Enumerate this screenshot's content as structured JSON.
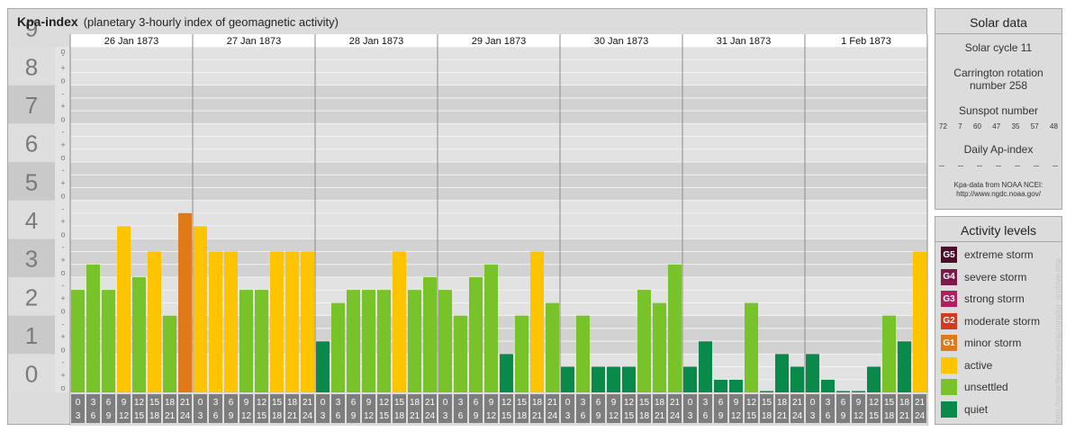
{
  "title": {
    "main": "Kpa-index",
    "subtitle": "(planetary 3-hourly index of geomagnetic activity)"
  },
  "solar": {
    "title": "Solar data",
    "cycle": "Solar cycle 11",
    "carrington_line1": "Carrington rotation",
    "carrington_line2": "number 258",
    "sunspot_label": "Sunspot number",
    "sunspots": [
      "72",
      "7",
      "60",
      "47",
      "35",
      "57",
      "48"
    ],
    "ap_label": "Daily Ap-index",
    "ap_values": [
      "--",
      "--",
      "--",
      "--",
      "--",
      "--",
      "--"
    ],
    "source_line1": "Kpa-data from NOAA NCEI:",
    "source_line2": "http://www.ngdc.noaa.gov/"
  },
  "legend": {
    "title": "Activity levels",
    "items": [
      {
        "code": "G5",
        "label": "extreme storm",
        "color": "#4a0d2a"
      },
      {
        "code": "G4",
        "label": "severe storm",
        "color": "#7a1b4b"
      },
      {
        "code": "G3",
        "label": "strong storm",
        "color": "#b0205f"
      },
      {
        "code": "G2",
        "label": "moderate storm",
        "color": "#d33a1f"
      },
      {
        "code": "G1",
        "label": "minor storm",
        "color": "#e07a18"
      },
      {
        "code": "",
        "label": "active",
        "color": "#ffc400"
      },
      {
        "code": "",
        "label": "unsettled",
        "color": "#78c22a"
      },
      {
        "code": "",
        "label": "quiet",
        "color": "#0a8a4a"
      }
    ]
  },
  "watermark": "http://www.tleyesse.ew/aurora/kp_archive.php",
  "chart_data": {
    "type": "bar",
    "title": "Kpa-index",
    "subtitle": "(planetary 3-hourly index of geomagnetic activity)",
    "ylim": [
      0,
      9
    ],
    "y_ticks": [
      "0",
      "1",
      "2",
      "3",
      "4",
      "5",
      "6",
      "7",
      "8",
      "9"
    ],
    "y_subticks": [
      "o",
      "+",
      "-"
    ],
    "days": [
      "26 Jan 1873",
      "27 Jan 1873",
      "28 Jan 1873",
      "29 Jan 1873",
      "30 Jan 1873",
      "31 Jan 1873",
      "1 Feb 1873"
    ],
    "interval_top": [
      "0",
      "3",
      "6",
      "9",
      "12",
      "15",
      "18",
      "21"
    ],
    "interval_bottom": [
      "3",
      "6",
      "9",
      "12",
      "15",
      "18",
      "21",
      "24"
    ],
    "colors": {
      "quiet": "#0a8a4a",
      "unsettled": "#78c22a",
      "active": "#ffc400",
      "minor": "#e07a18"
    },
    "values": [
      [
        2.67,
        3.33,
        2.67,
        4.33,
        3.0,
        3.67,
        2.0,
        4.67
      ],
      [
        4.33,
        3.67,
        3.67,
        2.67,
        2.67,
        3.67,
        3.67,
        3.67
      ],
      [
        1.33,
        2.33,
        2.67,
        2.67,
        2.67,
        3.67,
        2.67,
        3.0
      ],
      [
        2.67,
        2.0,
        3.0,
        3.33,
        1.0,
        2.0,
        3.67,
        2.33
      ],
      [
        0.67,
        2.0,
        0.67,
        0.67,
        0.67,
        2.67,
        2.33,
        3.33
      ],
      [
        0.67,
        1.33,
        0.33,
        0.33,
        2.33,
        0.0,
        1.0,
        0.67
      ],
      [
        1.0,
        0.33,
        0.0,
        0.0,
        0.67,
        2.0,
        1.33,
        3.67
      ]
    ]
  }
}
